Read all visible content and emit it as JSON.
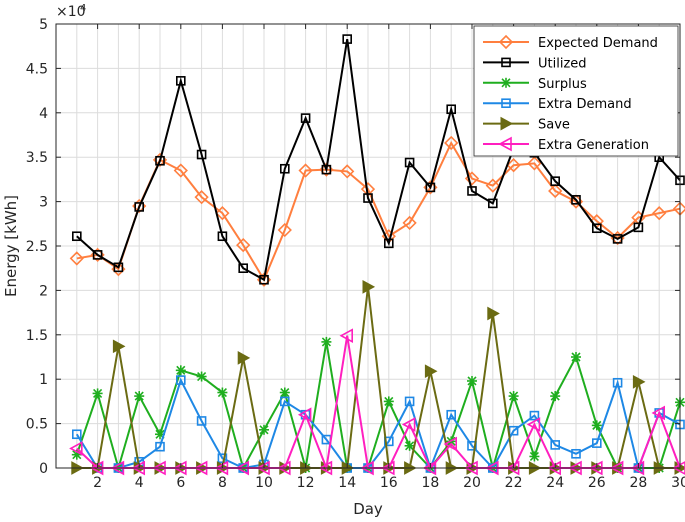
{
  "chart_data": {
    "type": "line",
    "xlabel": "Day",
    "ylabel": "Energy [kWh]",
    "y_exponent_label": "×10",
    "y_exponent_power": "4",
    "xlim": [
      0,
      30
    ],
    "ylim": [
      0,
      5
    ],
    "x_ticks": [
      2,
      4,
      6,
      8,
      10,
      12,
      14,
      16,
      18,
      20,
      22,
      24,
      26,
      28,
      30
    ],
    "x_tick_labels": [
      "2",
      "4",
      "6",
      "8",
      "10",
      "12",
      "14",
      "16",
      "18",
      "20",
      "22",
      "24",
      "26",
      "28",
      "30"
    ],
    "y_ticks": [
      0,
      0.5,
      1,
      1.5,
      2,
      2.5,
      3,
      3.5,
      4,
      4.5,
      5
    ],
    "y_tick_labels": [
      "0",
      "0.5",
      "1",
      "1.5",
      "2",
      "2.5",
      "3",
      "3.5",
      "4",
      "4.5",
      "5"
    ],
    "grid": true,
    "legend_position": "top-right",
    "x": [
      1,
      2,
      3,
      4,
      5,
      6,
      7,
      8,
      9,
      10,
      11,
      12,
      13,
      14,
      15,
      16,
      17,
      18,
      19,
      20,
      21,
      22,
      23,
      24,
      25,
      26,
      27,
      28,
      29,
      30
    ],
    "series": [
      {
        "name": "Expected Demand",
        "color": "#ff7f3f",
        "marker": "diamond",
        "values": [
          2.36,
          2.4,
          2.24,
          2.95,
          3.47,
          3.35,
          3.05,
          2.87,
          2.51,
          2.12,
          2.68,
          3.35,
          3.36,
          3.34,
          3.14,
          2.61,
          2.76,
          3.16,
          3.66,
          3.26,
          3.18,
          3.41,
          3.43,
          3.12,
          3.0,
          2.78,
          2.59,
          2.82,
          2.87,
          2.92
        ]
      },
      {
        "name": "Utilized",
        "color": "#000000",
        "marker": "square",
        "values": [
          2.61,
          2.4,
          2.26,
          2.94,
          3.46,
          4.36,
          3.53,
          2.61,
          2.25,
          2.12,
          3.37,
          3.94,
          3.36,
          4.83,
          3.04,
          2.53,
          3.44,
          3.16,
          4.04,
          3.12,
          2.98,
          3.6,
          3.55,
          3.23,
          3.02,
          2.7,
          2.58,
          2.71,
          3.5,
          3.24
        ]
      },
      {
        "name": "Surplus",
        "color": "#1fae1f",
        "marker": "asterisk",
        "values": [
          0.15,
          0.84,
          0.0,
          0.81,
          0.38,
          1.1,
          1.03,
          0.85,
          0.0,
          0.43,
          0.85,
          0.0,
          1.42,
          0.0,
          0.0,
          0.75,
          0.25,
          0.0,
          0.3,
          0.98,
          0.0,
          0.81,
          0.13,
          0.81,
          1.25,
          0.48,
          0.0,
          0.0,
          0.0,
          0.74
        ]
      },
      {
        "name": "Extra Demand",
        "color": "#1e88e5",
        "marker": "square",
        "values": [
          0.38,
          0.0,
          0.0,
          0.07,
          0.24,
          0.99,
          0.53,
          0.11,
          0.0,
          0.04,
          0.75,
          0.6,
          0.32,
          0.0,
          0.0,
          0.3,
          0.75,
          0.0,
          0.6,
          0.25,
          0.0,
          0.42,
          0.59,
          0.26,
          0.16,
          0.28,
          0.96,
          0.0,
          0.62,
          0.49
        ]
      },
      {
        "name": "Save",
        "color": "#6b6b13",
        "marker": "triangle-right",
        "values": [
          0.0,
          0.0,
          1.37,
          0.0,
          0.0,
          0.0,
          0.0,
          0.0,
          1.24,
          0.0,
          0.0,
          0.0,
          0.0,
          0.0,
          2.04,
          0.0,
          0.0,
          1.09,
          0.0,
          0.0,
          1.74,
          0.0,
          0.0,
          0.0,
          0.0,
          0.0,
          0.0,
          0.97,
          0.0,
          0.0
        ]
      },
      {
        "name": "Extra Generation",
        "color": "#ff1fbf",
        "marker": "triangle-left",
        "values": [
          0.22,
          0.0,
          0.0,
          0.0,
          0.0,
          0.0,
          0.0,
          0.0,
          0.0,
          0.0,
          0.0,
          0.6,
          0.0,
          1.49,
          0.0,
          0.0,
          0.49,
          0.0,
          0.27,
          0.0,
          0.0,
          0.0,
          0.49,
          0.0,
          0.0,
          0.0,
          0.0,
          0.0,
          0.62,
          0.0
        ]
      }
    ]
  }
}
